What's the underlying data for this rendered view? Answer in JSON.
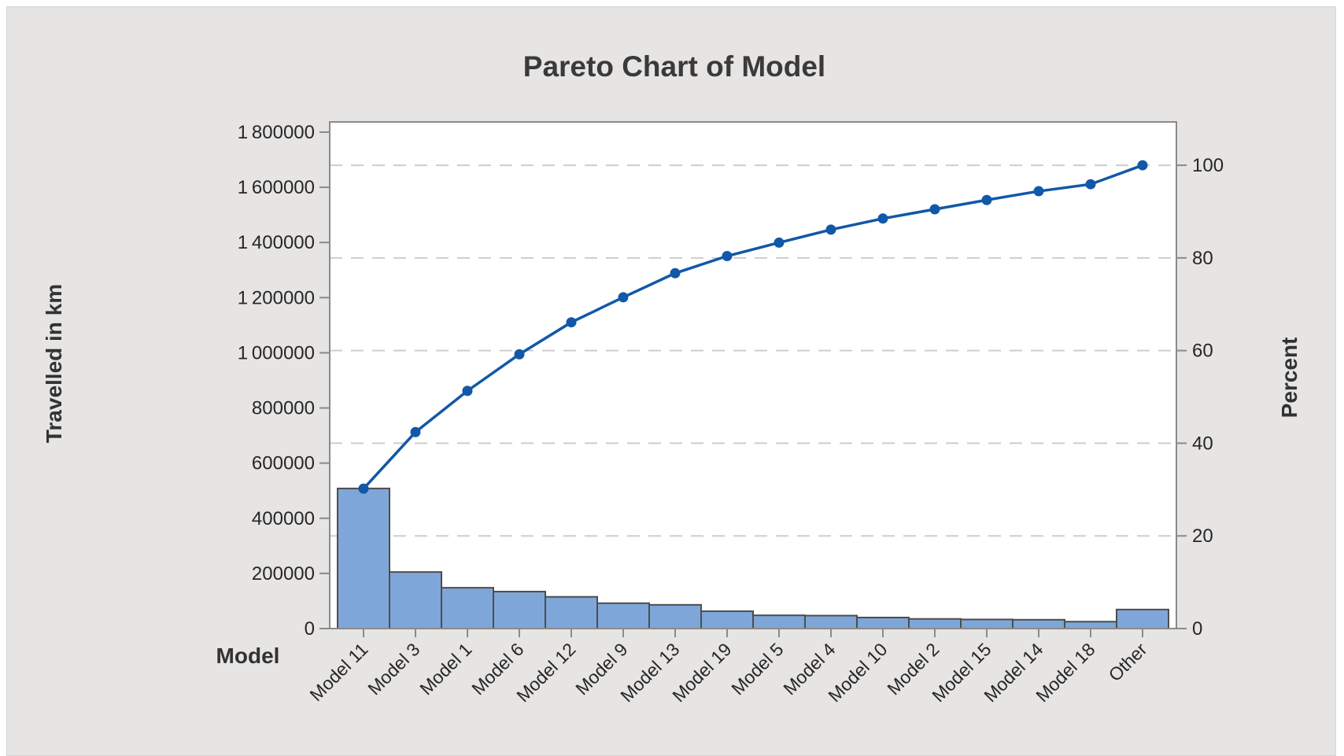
{
  "window": {
    "kind": "minitab-graph-window"
  },
  "colors": {
    "panel_bg": "#e6e5e4",
    "plot_bg": "#ffffff",
    "frame": "#8a8a8a",
    "grid": "#cdcdcd",
    "bar_fill": "#7fa6d8",
    "bar_stroke": "#4d4d4d",
    "line": "#1158a8",
    "title_text": "#3a3a3a",
    "tick_text": "#262626"
  },
  "chart_data": {
    "type": "bar",
    "variant": "pareto (bars + cumulative percent line)",
    "title": "Pareto Chart of Model",
    "xlabel": "Model",
    "ylabel_left": "Travelled in km",
    "ylabel_right": "Percent",
    "categories": [
      "Model 11",
      "Model 3",
      "Model 1",
      "Model 6",
      "Model 12",
      "Model 9",
      "Model 13",
      "Model 19",
      "Model 5",
      "Model 4",
      "Model 10",
      "Model 2",
      "Model 15",
      "Model 14",
      "Model 18",
      "Other"
    ],
    "values": [
      508000,
      205000,
      148000,
      134000,
      115000,
      92000,
      86000,
      63000,
      48000,
      47000,
      40000,
      35000,
      33000,
      32000,
      25000,
      69000
    ],
    "cumulative": [
      508000,
      713000,
      861000,
      995000,
      1110000,
      1202000,
      1288000,
      1351000,
      1399000,
      1446000,
      1486000,
      1521000,
      1554000,
      1586000,
      1611000,
      1680000
    ],
    "cumulative_percent": [
      30.2,
      42.4,
      51.3,
      59.2,
      66.1,
      71.5,
      76.7,
      80.4,
      83.3,
      86.1,
      88.5,
      90.5,
      92.5,
      94.4,
      95.9,
      100.0
    ],
    "total": 1680000,
    "ylim_left": [
      0,
      1800000
    ],
    "ylim_right": [
      0,
      100
    ],
    "left_tick_values": [
      0,
      200000,
      400000,
      600000,
      800000,
      1000000,
      1200000,
      1400000,
      1600000,
      1800000
    ],
    "left_tick_labels": [
      "0",
      "200000",
      "400000",
      "600000",
      "800000",
      "1 000000",
      "1 200000",
      "1 400000",
      "1 600000",
      "1 800000"
    ],
    "right_tick_values": [
      0,
      20,
      40,
      60,
      80,
      100
    ],
    "right_tick_labels": [
      "0",
      "20",
      "40",
      "60",
      "80",
      "100"
    ],
    "grid": "horizontal dashed lines at right-axis (percent) ticks 20-100",
    "legend": "none"
  }
}
